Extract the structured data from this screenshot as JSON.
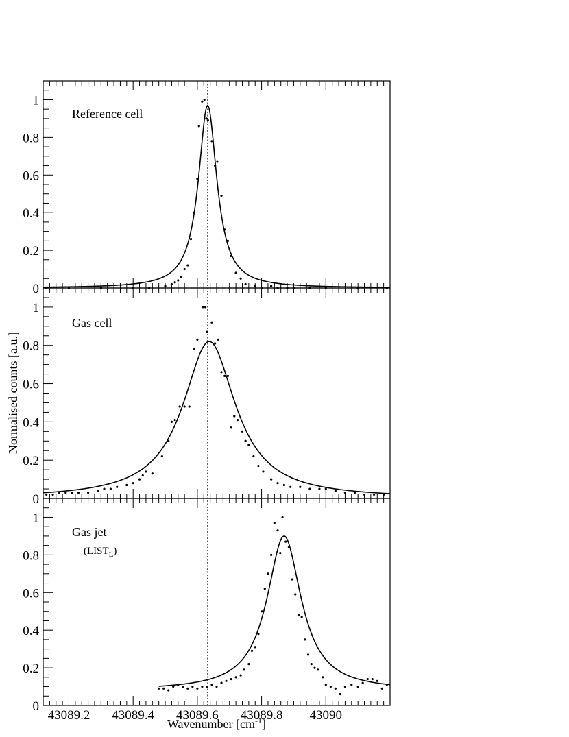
{
  "chart_data": {
    "type": "scatter",
    "xlabel_main": "Wavenumber [cm",
    "xlabel_sup": "-1",
    "xlabel_end": "]",
    "ylabel": "Normalised counts [a.u.]",
    "xlim": [
      43089.12,
      43090.2
    ],
    "ylim": [
      0,
      1.1
    ],
    "x_ticks": [
      43089.2,
      43089.4,
      43089.6,
      43089.8,
      43090.0
    ],
    "x_tick_labels": [
      "43089.2",
      "43089.4",
      "43089.6",
      "43089.8",
      "43090"
    ],
    "y_ticks": [
      0,
      0.2,
      0.4,
      0.6,
      0.8,
      1
    ],
    "y_tick_labels": [
      "0",
      "0.2",
      "0.4",
      "0.6",
      "0.8",
      "1"
    ],
    "reference_line_x": 43089.632,
    "grid": false,
    "panels": [
      {
        "label": "Reference cell",
        "sublabel": "",
        "fit": {
          "model": "lorentzian",
          "x0": 43089.632,
          "amplitude": 0.97,
          "fwhm": 0.07,
          "baseline": 0.0
        },
        "points": [
          [
            43089.13,
            0.0
          ],
          [
            43089.2,
            0.0
          ],
          [
            43089.3,
            0.0
          ],
          [
            43089.4,
            0.0
          ],
          [
            43089.45,
            0.0
          ],
          [
            43089.5,
            0.01
          ],
          [
            43089.52,
            0.02
          ],
          [
            43089.53,
            0.03
          ],
          [
            43089.54,
            0.04
          ],
          [
            43089.55,
            0.06
          ],
          [
            43089.56,
            0.1
          ],
          [
            43089.57,
            0.12
          ],
          [
            43089.58,
            0.26
          ],
          [
            43089.59,
            0.4
          ],
          [
            43089.6,
            0.58
          ],
          [
            43089.605,
            0.86
          ],
          [
            43089.615,
            0.99
          ],
          [
            43089.622,
            1.0
          ],
          [
            43089.628,
            0.9
          ],
          [
            43089.633,
            0.89
          ],
          [
            43089.645,
            0.78
          ],
          [
            43089.655,
            0.65
          ],
          [
            43089.662,
            0.67
          ],
          [
            43089.675,
            0.49
          ],
          [
            43089.685,
            0.31
          ],
          [
            43089.695,
            0.25
          ],
          [
            43089.705,
            0.17
          ],
          [
            43089.72,
            0.08
          ],
          [
            43089.735,
            0.05
          ],
          [
            43089.75,
            0.02
          ],
          [
            43089.78,
            0.01
          ],
          [
            43089.8,
            0.0
          ],
          [
            43089.83,
            0.01
          ],
          [
            43089.85,
            0.0
          ],
          [
            43089.88,
            0.0
          ],
          [
            43089.9,
            0.0
          ],
          [
            43089.95,
            0.0
          ],
          [
            43090.0,
            0.0
          ],
          [
            43090.1,
            0.0
          ],
          [
            43090.19,
            0.0
          ]
        ]
      },
      {
        "label": "Gas cell",
        "sublabel": "",
        "fit": {
          "model": "lorentzian",
          "x0": 43089.637,
          "amplitude": 0.82,
          "fwhm": 0.2,
          "baseline": 0.0
        },
        "points": [
          [
            43089.13,
            0.02
          ],
          [
            43089.15,
            0.02
          ],
          [
            43089.17,
            0.03
          ],
          [
            43089.19,
            0.03
          ],
          [
            43089.21,
            0.03
          ],
          [
            43089.23,
            0.03
          ],
          [
            43089.26,
            0.03
          ],
          [
            43089.29,
            0.04
          ],
          [
            43089.31,
            0.05
          ],
          [
            43089.33,
            0.05
          ],
          [
            43089.35,
            0.06
          ],
          [
            43089.38,
            0.07
          ],
          [
            43089.4,
            0.08
          ],
          [
            43089.42,
            0.1
          ],
          [
            43089.43,
            0.12
          ],
          [
            43089.44,
            0.14
          ],
          [
            43089.46,
            0.13
          ],
          [
            43089.49,
            0.22
          ],
          [
            43089.51,
            0.3
          ],
          [
            43089.52,
            0.4
          ],
          [
            43089.53,
            0.41
          ],
          [
            43089.545,
            0.48
          ],
          [
            43089.56,
            0.48
          ],
          [
            43089.575,
            0.48
          ],
          [
            43089.59,
            0.78
          ],
          [
            43089.6,
            0.83
          ],
          [
            43089.617,
            1.0
          ],
          [
            43089.625,
            1.0
          ],
          [
            43089.63,
            0.87
          ],
          [
            43089.645,
            0.92
          ],
          [
            43089.655,
            0.81
          ],
          [
            43089.665,
            0.83
          ],
          [
            43089.675,
            0.66
          ],
          [
            43089.685,
            0.64
          ],
          [
            43089.695,
            0.64
          ],
          [
            43089.705,
            0.37
          ],
          [
            43089.715,
            0.43
          ],
          [
            43089.725,
            0.41
          ],
          [
            43089.74,
            0.35
          ],
          [
            43089.75,
            0.3
          ],
          [
            43089.76,
            0.28
          ],
          [
            43089.775,
            0.22
          ],
          [
            43089.79,
            0.17
          ],
          [
            43089.805,
            0.14
          ],
          [
            43089.83,
            0.1
          ],
          [
            43089.85,
            0.08
          ],
          [
            43089.87,
            0.07
          ],
          [
            43089.89,
            0.06
          ],
          [
            43089.92,
            0.06
          ],
          [
            43089.95,
            0.05
          ],
          [
            43089.98,
            0.05
          ],
          [
            43090.0,
            0.05
          ],
          [
            43090.03,
            0.04
          ],
          [
            43090.06,
            0.03
          ],
          [
            43090.09,
            0.03
          ],
          [
            43090.12,
            0.02
          ],
          [
            43090.15,
            0.02
          ],
          [
            43090.18,
            0.02
          ]
        ]
      },
      {
        "label": "Gas jet",
        "sublabel": "(LIST",
        "sublabel_sub": "L",
        "sublabel_end": ")",
        "fit": {
          "model": "lorentzian",
          "x0": 43089.87,
          "amplitude": 0.82,
          "fwhm": 0.13,
          "baseline": 0.08
        },
        "points": [
          [
            43089.48,
            0.09
          ],
          [
            43089.495,
            0.09
          ],
          [
            43089.51,
            0.08
          ],
          [
            43089.525,
            0.1
          ],
          [
            43089.54,
            0.11
          ],
          [
            43089.555,
            0.1
          ],
          [
            43089.57,
            0.09
          ],
          [
            43089.585,
            0.1
          ],
          [
            43089.6,
            0.09
          ],
          [
            43089.615,
            0.1
          ],
          [
            43089.63,
            0.1
          ],
          [
            43089.645,
            0.11
          ],
          [
            43089.66,
            0.1
          ],
          [
            43089.675,
            0.12
          ],
          [
            43089.69,
            0.13
          ],
          [
            43089.705,
            0.14
          ],
          [
            43089.72,
            0.15
          ],
          [
            43089.735,
            0.16
          ],
          [
            43089.745,
            0.19
          ],
          [
            43089.76,
            0.22
          ],
          [
            43089.77,
            0.29
          ],
          [
            43089.78,
            0.31
          ],
          [
            43089.79,
            0.38
          ],
          [
            43089.8,
            0.5
          ],
          [
            43089.81,
            0.62
          ],
          [
            43089.82,
            0.7
          ],
          [
            43089.83,
            0.8
          ],
          [
            43089.84,
            0.97
          ],
          [
            43089.85,
            0.93
          ],
          [
            43089.858,
            0.81
          ],
          [
            43089.865,
            1.0
          ],
          [
            43089.875,
            0.87
          ],
          [
            43089.885,
            0.84
          ],
          [
            43089.895,
            0.67
          ],
          [
            43089.905,
            0.59
          ],
          [
            43089.915,
            0.48
          ],
          [
            43089.925,
            0.47
          ],
          [
            43089.935,
            0.35
          ],
          [
            43089.945,
            0.27
          ],
          [
            43089.955,
            0.22
          ],
          [
            43089.965,
            0.2
          ],
          [
            43089.975,
            0.19
          ],
          [
            43089.99,
            0.15
          ],
          [
            43090.0,
            0.11
          ],
          [
            43090.015,
            0.1
          ],
          [
            43090.03,
            0.09
          ],
          [
            43090.045,
            0.06
          ],
          [
            43090.06,
            0.1
          ],
          [
            43090.08,
            0.11
          ],
          [
            43090.1,
            0.1
          ],
          [
            43090.115,
            0.12
          ],
          [
            43090.13,
            0.14
          ],
          [
            43090.145,
            0.14
          ],
          [
            43090.16,
            0.13
          ],
          [
            43090.175,
            0.09
          ],
          [
            43090.19,
            0.11
          ]
        ]
      }
    ]
  }
}
